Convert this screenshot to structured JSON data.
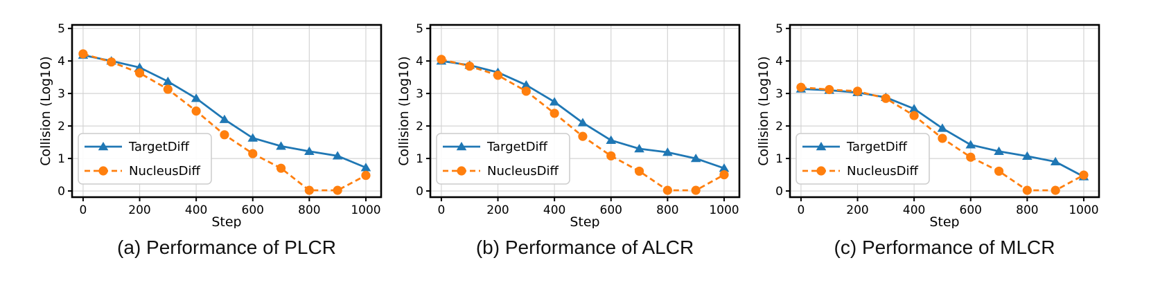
{
  "figure": {
    "background": "#ffffff",
    "colors": {
      "targetdiff": "#1f77b4",
      "nucleusdiff": "#ff7f0e",
      "grid": "#d4d4d4",
      "spine": "#000000",
      "legend_border": "#cccccc"
    }
  },
  "chart_data": [
    {
      "type": "line",
      "title": "(a) Performance of PLCR",
      "xlabel": "Step",
      "ylabel": "Collision (Log10)",
      "xticks": [
        0,
        200,
        400,
        600,
        800,
        1000
      ],
      "yticks": [
        0,
        1,
        2,
        3,
        4,
        5
      ],
      "xlim": [
        -39,
        1054
      ],
      "ylim": [
        -0.19,
        5.11
      ],
      "grid": true,
      "legend_position": "lower left",
      "x": [
        0,
        100,
        200,
        300,
        400,
        500,
        600,
        700,
        800,
        900,
        1000
      ],
      "series": [
        {
          "name": "TargetDiff",
          "color": "#1f77b4",
          "marker": "triangle",
          "linestyle": "solid",
          "values": [
            4.18,
            4.0,
            3.8,
            3.37,
            2.85,
            2.2,
            1.63,
            1.38,
            1.22,
            1.08,
            0.72
          ]
        },
        {
          "name": "NucleusDiff",
          "color": "#ff7f0e",
          "marker": "circle",
          "linestyle": "dashed",
          "values": [
            4.22,
            3.97,
            3.63,
            3.13,
            2.46,
            1.73,
            1.15,
            0.7,
            0.02,
            0.02,
            0.48
          ]
        }
      ]
    },
    {
      "type": "line",
      "title": "(b) Performance of ALCR",
      "xlabel": "Step",
      "ylabel": "Collision (Log10)",
      "xticks": [
        0,
        200,
        400,
        600,
        800,
        1000
      ],
      "yticks": [
        0,
        1,
        2,
        3,
        4,
        5
      ],
      "xlim": [
        -39,
        1054
      ],
      "ylim": [
        -0.19,
        5.11
      ],
      "grid": true,
      "legend_position": "lower left",
      "x": [
        0,
        100,
        200,
        300,
        400,
        500,
        600,
        700,
        800,
        900,
        1000
      ],
      "series": [
        {
          "name": "TargetDiff",
          "color": "#1f77b4",
          "marker": "triangle",
          "linestyle": "solid",
          "values": [
            4.0,
            3.87,
            3.65,
            3.26,
            2.74,
            2.1,
            1.56,
            1.3,
            1.19,
            1.0,
            0.7
          ]
        },
        {
          "name": "NucleusDiff",
          "color": "#ff7f0e",
          "marker": "circle",
          "linestyle": "dashed",
          "values": [
            4.05,
            3.84,
            3.56,
            3.07,
            2.39,
            1.68,
            1.08,
            0.61,
            0.02,
            0.02,
            0.5
          ]
        }
      ]
    },
    {
      "type": "line",
      "title": "(c) Performance of MLCR",
      "xlabel": "Step",
      "ylabel": "Collision (Log10)",
      "xticks": [
        0,
        200,
        400,
        600,
        800,
        1000
      ],
      "yticks": [
        0,
        1,
        2,
        3,
        4,
        5
      ],
      "xlim": [
        -39,
        1054
      ],
      "ylim": [
        -0.19,
        5.11
      ],
      "grid": true,
      "legend_position": "lower left",
      "x": [
        0,
        100,
        200,
        300,
        400,
        500,
        600,
        700,
        800,
        900,
        1000
      ],
      "series": [
        {
          "name": "TargetDiff",
          "color": "#1f77b4",
          "marker": "triangle",
          "linestyle": "solid",
          "values": [
            3.14,
            3.1,
            3.03,
            2.88,
            2.53,
            1.93,
            1.42,
            1.22,
            1.07,
            0.9,
            0.44
          ]
        },
        {
          "name": "NucleusDiff",
          "color": "#ff7f0e",
          "marker": "circle",
          "linestyle": "dashed",
          "values": [
            3.19,
            3.12,
            3.07,
            2.85,
            2.32,
            1.62,
            1.04,
            0.61,
            0.02,
            0.02,
            0.49
          ]
        }
      ]
    }
  ]
}
